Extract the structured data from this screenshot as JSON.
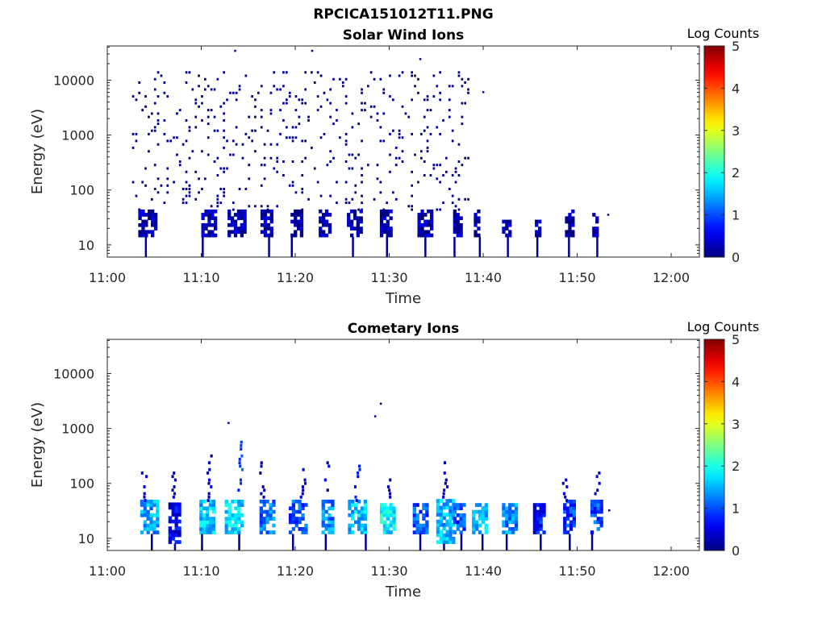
{
  "figure_title": "RPCICA151012T11.PNG",
  "chart_data": [
    {
      "type": "heatmap",
      "title": "Solar Wind Ions",
      "xlabel": "Time",
      "ylabel": "Energy (eV)",
      "x_ticks": [
        "11:00",
        "11:10",
        "11:20",
        "11:30",
        "11:40",
        "11:50",
        "12:00"
      ],
      "xlim": [
        "11:00",
        "12:03"
      ],
      "y_scale": "log",
      "y_ticks": [
        "10",
        "100",
        "1000",
        "10000"
      ],
      "ylim": [
        6,
        42000
      ],
      "colorbar": {
        "label": "Log Counts",
        "ticks": [
          "0",
          "1",
          "2",
          "3",
          "4",
          "5"
        ],
        "range": [
          0,
          5
        ],
        "colormap": "jet"
      },
      "sparse_region": {
        "t_start": 2.3,
        "t_end": 38.5,
        "e_min": 40,
        "e_max": 13000,
        "log_counts": 0.05
      },
      "band_segments": [
        {
          "t_start": 3.3,
          "t_end": 5.0,
          "e_min": 14,
          "e_max": 40,
          "log_counts": 0.2
        },
        {
          "t_start": 10.0,
          "t_end": 11.5,
          "e_min": 14,
          "e_max": 40,
          "log_counts": 0.2
        },
        {
          "t_start": 12.8,
          "t_end": 14.6,
          "e_min": 14,
          "e_max": 40,
          "log_counts": 0.2
        },
        {
          "t_start": 16.3,
          "t_end": 17.5,
          "e_min": 14,
          "e_max": 40,
          "log_counts": 0.2
        },
        {
          "t_start": 19.5,
          "t_end": 20.8,
          "e_min": 14,
          "e_max": 40,
          "log_counts": 0.2
        },
        {
          "t_start": 22.5,
          "t_end": 23.8,
          "e_min": 14,
          "e_max": 40,
          "log_counts": 0.2
        },
        {
          "t_start": 25.5,
          "t_end": 26.9,
          "e_min": 14,
          "e_max": 40,
          "log_counts": 0.2
        },
        {
          "t_start": 29.0,
          "t_end": 30.3,
          "e_min": 14,
          "e_max": 40,
          "log_counts": 0.2
        },
        {
          "t_start": 33.0,
          "t_end": 34.5,
          "e_min": 14,
          "e_max": 40,
          "log_counts": 0.2
        },
        {
          "t_start": 36.8,
          "t_end": 37.8,
          "e_min": 14,
          "e_max": 40,
          "log_counts": 0.2
        },
        {
          "t_start": 39.0,
          "t_end": 39.6,
          "e_min": 14,
          "e_max": 40,
          "log_counts": 0.2
        },
        {
          "t_start": 42.0,
          "t_end": 42.8,
          "e_min": 14,
          "e_max": 28,
          "log_counts": 0.2
        },
        {
          "t_start": 45.5,
          "t_end": 46.1,
          "e_min": 14,
          "e_max": 28,
          "log_counts": 0.2
        },
        {
          "t_start": 48.7,
          "t_end": 49.5,
          "e_min": 14,
          "e_max": 40,
          "log_counts": 0.2
        },
        {
          "t_start": 51.6,
          "t_end": 52.2,
          "e_min": 14,
          "e_max": 40,
          "log_counts": 0.2
        }
      ],
      "isolated_points": [
        {
          "t": 13.5,
          "e": 34000
        },
        {
          "t": 21.7,
          "e": 34000
        },
        {
          "t": 33.2,
          "e": 24000
        },
        {
          "t": 39.9,
          "e": 6000
        },
        {
          "t": 53.2,
          "e": 35
        }
      ]
    },
    {
      "type": "heatmap",
      "title": "Cometary Ions",
      "xlabel": "Time",
      "ylabel": "Energy (eV)",
      "x_ticks": [
        "11:00",
        "11:10",
        "11:20",
        "11:30",
        "11:40",
        "11:50",
        "12:00"
      ],
      "xlim": [
        "11:00",
        "12:03"
      ],
      "y_scale": "log",
      "y_ticks": [
        "10",
        "100",
        "1000",
        "10000"
      ],
      "ylim": [
        6,
        42000
      ],
      "colorbar": {
        "label": "Log Counts",
        "ticks": [
          "0",
          "1",
          "2",
          "3",
          "4",
          "5"
        ],
        "range": [
          0,
          5
        ],
        "colormap": "jet"
      },
      "band_segments": [
        {
          "t_start": 3.5,
          "t_end": 5.2,
          "e_min": 12,
          "e_max": 45,
          "log_counts": 1.4
        },
        {
          "t_start": 6.5,
          "t_end": 7.5,
          "e_min": 8,
          "e_max": 40,
          "log_counts": 0.5
        },
        {
          "t_start": 9.8,
          "t_end": 11.3,
          "e_min": 12,
          "e_max": 45,
          "log_counts": 1.6
        },
        {
          "t_start": 12.5,
          "t_end": 14.5,
          "e_min": 12,
          "e_max": 45,
          "log_counts": 1.7
        },
        {
          "t_start": 16.2,
          "t_end": 17.6,
          "e_min": 12,
          "e_max": 45,
          "log_counts": 1.2
        },
        {
          "t_start": 19.3,
          "t_end": 21.0,
          "e_min": 12,
          "e_max": 45,
          "log_counts": 1.0
        },
        {
          "t_start": 22.8,
          "t_end": 24.0,
          "e_min": 12,
          "e_max": 45,
          "log_counts": 1.3
        },
        {
          "t_start": 25.6,
          "t_end": 27.5,
          "e_min": 12,
          "e_max": 45,
          "log_counts": 1.6
        },
        {
          "t_start": 29.0,
          "t_end": 30.5,
          "e_min": 12,
          "e_max": 40,
          "log_counts": 1.8
        },
        {
          "t_start": 32.5,
          "t_end": 34.0,
          "e_min": 12,
          "e_max": 40,
          "log_counts": 1.0
        },
        {
          "t_start": 35.0,
          "t_end": 36.8,
          "e_min": 8,
          "e_max": 45,
          "log_counts": 1.5
        },
        {
          "t_start": 36.8,
          "t_end": 38.0,
          "e_min": 12,
          "e_max": 40,
          "log_counts": 1.0
        },
        {
          "t_start": 38.8,
          "t_end": 40.2,
          "e_min": 12,
          "e_max": 40,
          "log_counts": 1.5
        },
        {
          "t_start": 42.0,
          "t_end": 43.5,
          "e_min": 12,
          "e_max": 40,
          "log_counts": 1.3
        },
        {
          "t_start": 45.3,
          "t_end": 46.6,
          "e_min": 12,
          "e_max": 40,
          "log_counts": 0.7
        },
        {
          "t_start": 48.5,
          "t_end": 49.8,
          "e_min": 12,
          "e_max": 45,
          "log_counts": 0.9
        },
        {
          "t_start": 51.4,
          "t_end": 52.7,
          "e_min": 12,
          "e_max": 50,
          "log_counts": 1.0
        }
      ],
      "plumes": [
        {
          "t": 3.8,
          "e_min": 45,
          "e_max": 150,
          "log_counts": 0.4
        },
        {
          "t": 7.0,
          "e_min": 45,
          "e_max": 170,
          "log_counts": 0.3
        },
        {
          "t": 10.8,
          "e_min": 45,
          "e_max": 300,
          "log_counts": 0.4
        },
        {
          "t": 14.0,
          "e_min": 45,
          "e_max": 550,
          "log_counts": 1.0
        },
        {
          "t": 16.4,
          "e_min": 45,
          "e_max": 230,
          "log_counts": 0.4
        },
        {
          "t": 20.7,
          "e_min": 45,
          "e_max": 200,
          "log_counts": 0.3
        },
        {
          "t": 23.3,
          "e_min": 45,
          "e_max": 230,
          "log_counts": 0.4
        },
        {
          "t": 26.5,
          "e_min": 45,
          "e_max": 270,
          "log_counts": 0.6
        },
        {
          "t": 30.0,
          "e_min": 45,
          "e_max": 110,
          "log_counts": 0.3
        },
        {
          "t": 35.8,
          "e_min": 45,
          "e_max": 250,
          "log_counts": 0.4
        },
        {
          "t": 48.6,
          "e_min": 45,
          "e_max": 110,
          "log_counts": 0.3
        },
        {
          "t": 52.0,
          "e_min": 45,
          "e_max": 150,
          "log_counts": 0.4
        }
      ],
      "isolated_points": [
        {
          "t": 12.8,
          "e": 1250
        },
        {
          "t": 29.0,
          "e": 2800
        },
        {
          "t": 28.4,
          "e": 1650
        },
        {
          "t": 53.3,
          "e": 32
        }
      ]
    }
  ]
}
